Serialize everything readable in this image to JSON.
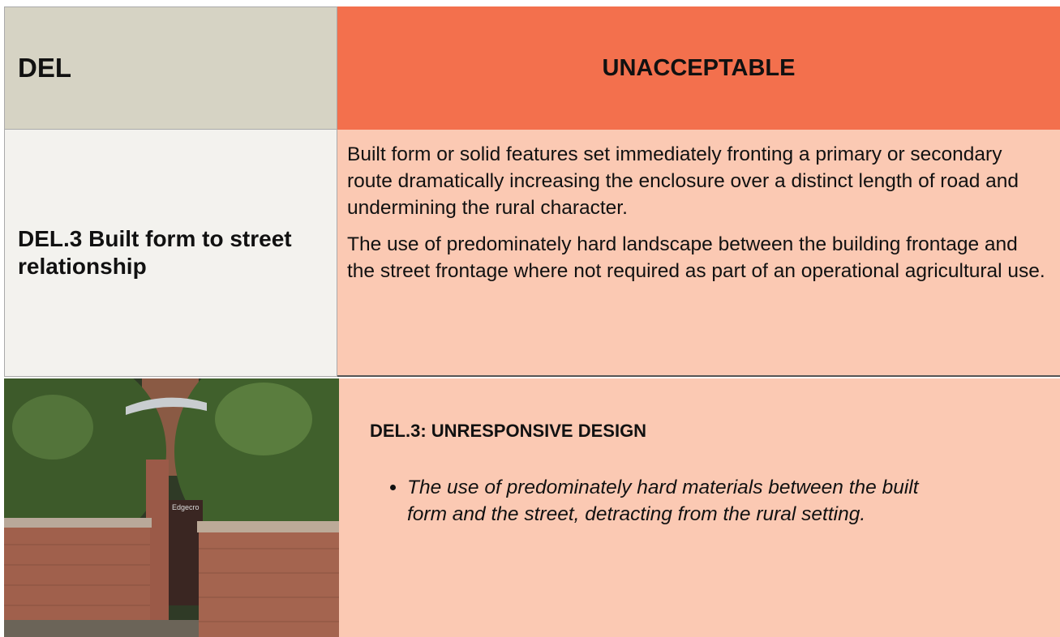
{
  "header": {
    "left": "DEL",
    "right": "UNACCEPTABLE"
  },
  "row": {
    "label": "DEL.3 Built form to street relationship",
    "paragraphs": [
      "Built form or solid features set immediately fronting a primary or secondary route dramatically increasing the enclosure over a distinct length of road and undermining the rural character.",
      "The use of predominately hard landscape between the building frontage and the street frontage where not required as part of an operational agricultural use."
    ]
  },
  "example": {
    "heading": "DEL.3: UNRESPONSIVE DESIGN",
    "bullets": [
      "The use of predominately hard materials between the built form and the street, detracting from the rural setting."
    ],
    "sign": "Edgecro"
  }
}
